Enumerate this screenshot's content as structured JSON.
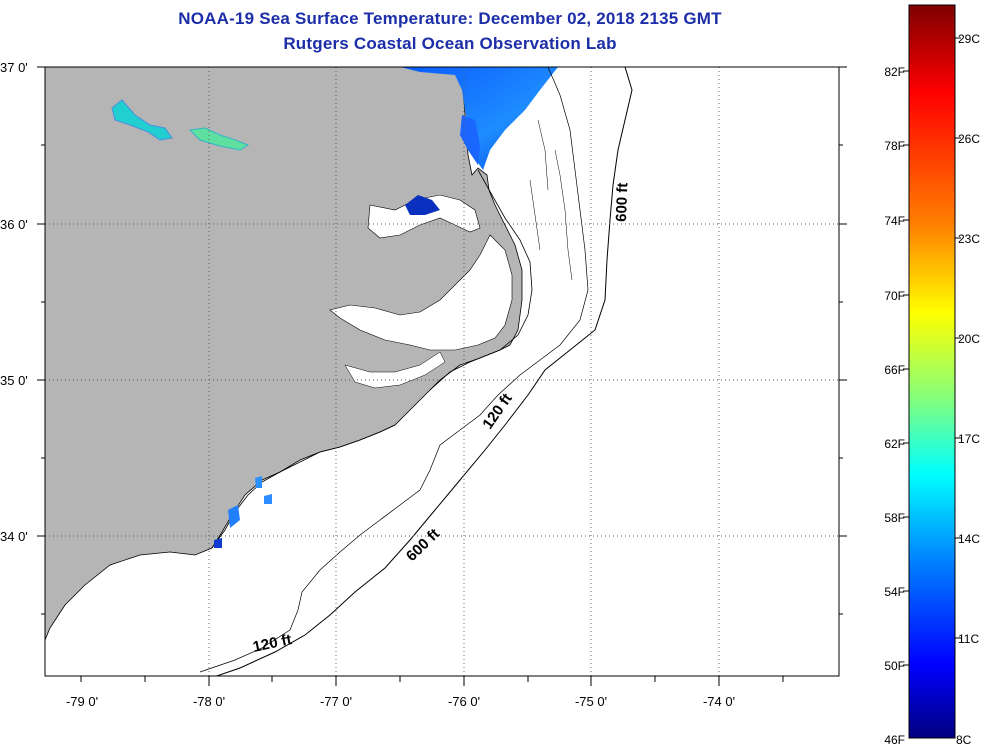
{
  "header": {
    "title": "NOAA-19 Sea Surface Temperature:  December 02, 2018 2135 GMT",
    "subtitle": "Rutgers Coastal Ocean Observation Lab"
  },
  "map": {
    "lat_labels": [
      "37 0'",
      "36 0'",
      "35 0'",
      "34 0'"
    ],
    "lon_labels": [
      "-79 0'",
      "-78 0'",
      "-77 0'",
      "-76 0'",
      "-75 0'",
      "-74 0'"
    ],
    "contour_labels": [
      "600 ft",
      "120 ft",
      "600 ft",
      "120 ft"
    ],
    "land_color": "#b5b5b5",
    "water_color": "#ffffff"
  },
  "colorbar": {
    "fahrenheit_labels": [
      "82F",
      "78F",
      "74F",
      "70F",
      "66F",
      "62F",
      "58F",
      "54F",
      "50F",
      "46F"
    ],
    "celsius_labels": [
      "29C",
      "26C",
      "23C",
      "20C",
      "17C",
      "14C",
      "11C",
      "8C"
    ],
    "colors": [
      "#7f0000",
      "#ff0000",
      "#ff8000",
      "#ffff00",
      "#80ff80",
      "#00ffff",
      "#0080ff",
      "#0000ff",
      "#00007f"
    ]
  }
}
